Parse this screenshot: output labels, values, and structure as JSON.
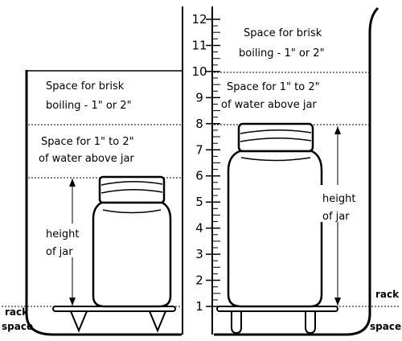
{
  "left_pot": {
    "boil_line1": "Space for brisk",
    "boil_line2": "boiling - 1\" or 2\"",
    "water_line1": "Space for 1\" to 2\"",
    "water_line2": "of water above jar",
    "height_line1": "height",
    "height_line2": "of jar",
    "rack_line1": "rack",
    "rack_line2": "space"
  },
  "right_pot": {
    "boil_line1": "Space for brisk",
    "boil_line2": "boiling - 1\" or 2\"",
    "water_line1": "Space for 1\" to 2\"",
    "water_line2": "of water above jar",
    "height_line1": "height",
    "height_line2": "of jar",
    "rack_line1": "rack",
    "rack_line2": "space"
  },
  "ruler": {
    "ticks": [
      "1",
      "2",
      "3",
      "4",
      "5",
      "6",
      "7",
      "8",
      "9",
      "10",
      "11",
      "12"
    ]
  }
}
